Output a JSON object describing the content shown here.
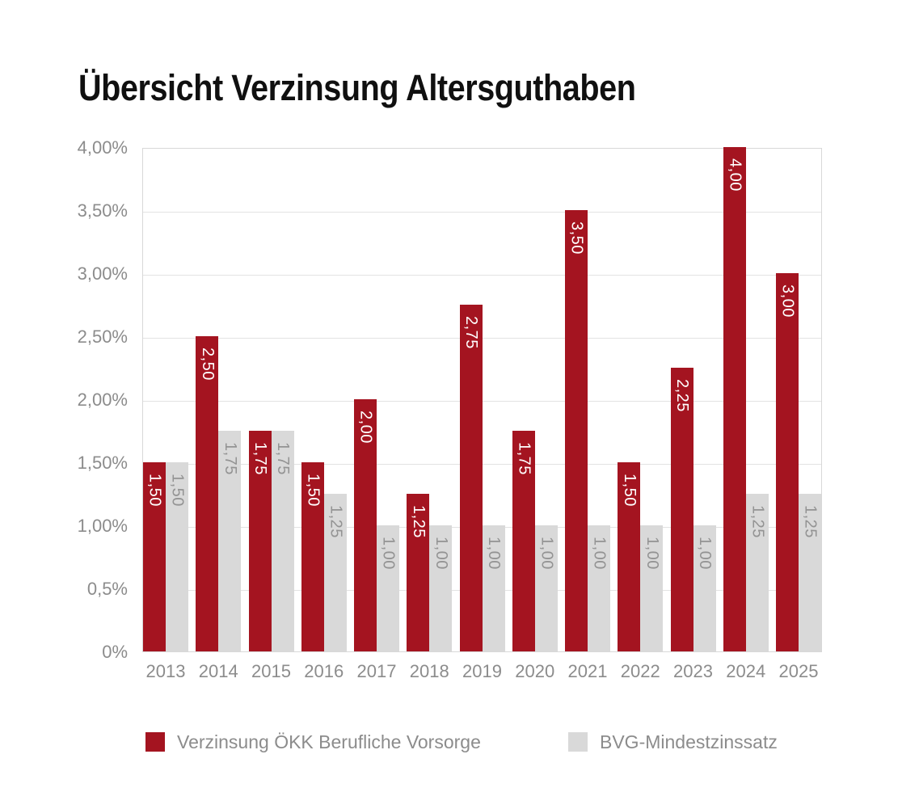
{
  "title": "Übersicht Verzinsung Altersguthaben",
  "colors": {
    "primary": "#a41420",
    "secondary": "#d9d9d9",
    "axis_text": "#8c8c8c",
    "grid": "#e3e3e3",
    "label_on_primary": "#ffffff",
    "label_on_secondary": "#939393"
  },
  "chart_data": {
    "type": "bar",
    "title": "Übersicht Verzinsung Altersguthaben",
    "categories": [
      "2013",
      "2014",
      "2015",
      "2016",
      "2017",
      "2018",
      "2019",
      "2020",
      "2021",
      "2022",
      "2023",
      "2024",
      "2025"
    ],
    "series": [
      {
        "name": "Verzinsung ÖKK Berufliche Vorsorge",
        "color": "#a41420",
        "values": [
          1.5,
          2.5,
          1.75,
          1.5,
          2.0,
          1.25,
          2.75,
          1.75,
          3.5,
          1.5,
          2.25,
          4.0,
          3.0
        ],
        "value_labels": [
          "1,50",
          "2,50",
          "1,75",
          "1,50",
          "2,00",
          "1,25",
          "2,75",
          "1,75",
          "3,50",
          "1,50",
          "2,25",
          "4,00",
          "3,00"
        ]
      },
      {
        "name": "BVG-Mindestzinssatz",
        "color": "#d9d9d9",
        "values": [
          1.5,
          1.75,
          1.75,
          1.25,
          1.0,
          1.0,
          1.0,
          1.0,
          1.0,
          1.0,
          1.0,
          1.25,
          1.25
        ],
        "value_labels": [
          "1,50",
          "1,75",
          "1,75",
          "1,25",
          "1,00",
          "1,00",
          "1,00",
          "1,00",
          "1,00",
          "1,00",
          "1,00",
          "1,25",
          "1,25"
        ]
      }
    ],
    "xlabel": "",
    "ylabel": "",
    "ylim": [
      0,
      4
    ],
    "ytick_labels": [
      "4,00%",
      "3,50%",
      "3,00%",
      "2,50%",
      "2,00%",
      "1,50%",
      "1,00%",
      "0,5%",
      "0%"
    ],
    "grid": true,
    "value_label_rotation": 90,
    "legend_position": "bottom"
  },
  "legend": {
    "items": [
      {
        "label": "Verzinsung ÖKK Berufliche Vorsorge",
        "color": "#a41420"
      },
      {
        "label": "BVG-Mindestzinssatz",
        "color": "#d9d9d9"
      }
    ]
  }
}
